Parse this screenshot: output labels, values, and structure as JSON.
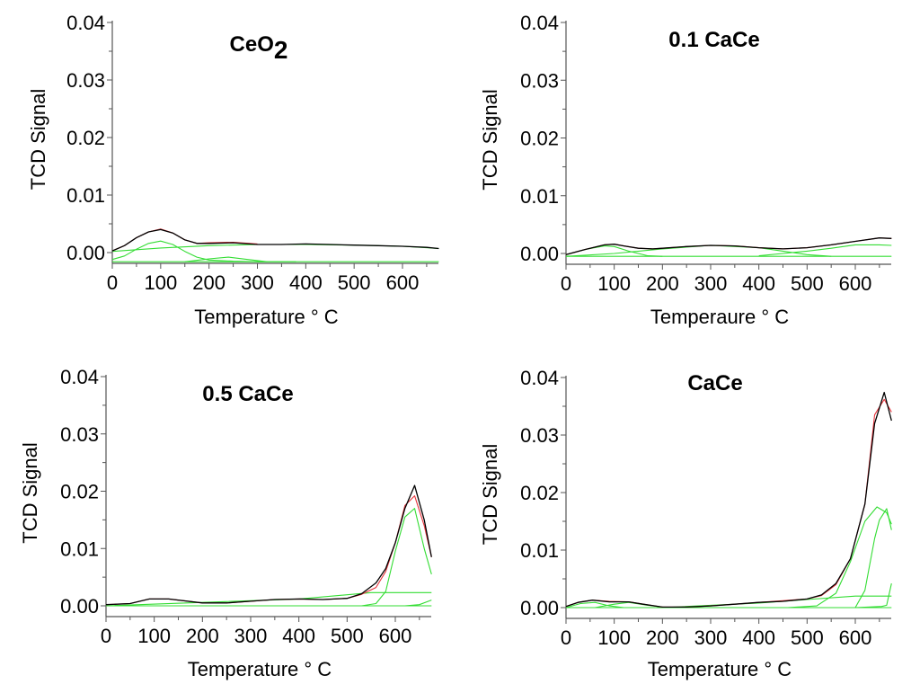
{
  "figure": {
    "layout": "2x2 grid",
    "background": "#ffffff"
  },
  "colors": {
    "experimental": "#000000",
    "fit_sum": "#e8343c",
    "components": "#33dd33",
    "axis": "#555555"
  },
  "chart_data": [
    {
      "id": "ceo2",
      "type": "line",
      "title": "CeO",
      "title_subscript": "2",
      "xlabel": "Temperature ° C",
      "ylabel": "TCD Signal",
      "xlim": [
        0,
        675
      ],
      "ylim": [
        -0.0018,
        0.04
      ],
      "xticks": [
        0,
        100,
        200,
        300,
        400,
        500,
        600
      ],
      "xtick_labels": [
        "0",
        "100",
        "200",
        "300",
        "400",
        "500",
        "600"
      ],
      "yticks": [
        0.0,
        0.01,
        0.02,
        0.03,
        0.04
      ],
      "ytick_labels": [
        "0.00",
        "0.01",
        "0.02",
        "0.03",
        "0.04"
      ],
      "series": [
        {
          "name": "experimental",
          "color": "#000000",
          "x": [
            0,
            25,
            50,
            75,
            100,
            125,
            150,
            175,
            200,
            250,
            300,
            350,
            400,
            450,
            500,
            550,
            600,
            650,
            675
          ],
          "y": [
            0.0003,
            0.0012,
            0.0026,
            0.0036,
            0.004,
            0.0034,
            0.0022,
            0.0016,
            0.0016,
            0.0017,
            0.0014,
            0.0014,
            0.0015,
            0.0014,
            0.0013,
            0.0012,
            0.0011,
            0.0009,
            0.0007
          ]
        },
        {
          "name": "fit",
          "color": "#e8343c",
          "x": [
            0,
            25,
            50,
            75,
            100,
            125,
            150,
            175,
            200,
            250,
            300
          ],
          "y": [
            0.0003,
            0.0012,
            0.0026,
            0.0036,
            0.0041,
            0.0034,
            0.0022,
            0.0016,
            0.0017,
            0.0018,
            0.0015
          ]
        },
        {
          "name": "component-baseline",
          "color": "#33dd33",
          "x": [
            0,
            100,
            200,
            300,
            400,
            500,
            600,
            675
          ],
          "y": [
            0.0002,
            0.0008,
            0.0012,
            0.0014,
            0.0014,
            0.0013,
            0.0011,
            0.0007
          ]
        },
        {
          "name": "component-peak-100",
          "color": "#33dd33",
          "x": [
            0,
            25,
            50,
            75,
            100,
            125,
            150,
            175,
            200,
            250,
            300,
            380
          ],
          "y": [
            -0.0012,
            -0.0006,
            0.0006,
            0.0016,
            0.002,
            0.0014,
            0.0002,
            -0.0008,
            -0.0013,
            -0.0015,
            -0.0016,
            -0.0016
          ]
        },
        {
          "name": "component-peak-240",
          "color": "#33dd33",
          "x": [
            150,
            200,
            240,
            280,
            320
          ],
          "y": [
            -0.0016,
            -0.0011,
            -0.0008,
            -0.0012,
            -0.0016
          ]
        },
        {
          "name": "component-flat",
          "color": "#33dd33",
          "x": [
            0,
            675
          ],
          "y": [
            -0.0016,
            -0.0016
          ]
        }
      ]
    },
    {
      "id": "01cace",
      "type": "line",
      "title": "0.1 CaCe",
      "title_subscript": "",
      "xlabel": "Temperaure ° C",
      "ylabel": "TCD Signal",
      "xlim": [
        0,
        675
      ],
      "ylim": [
        -0.0018,
        0.04
      ],
      "xticks": [
        0,
        100,
        200,
        300,
        400,
        500,
        600
      ],
      "xtick_labels": [
        "0",
        "100",
        "200",
        "300",
        "400",
        "500",
        "600"
      ],
      "yticks": [
        0.0,
        0.01,
        0.02,
        0.03,
        0.04
      ],
      "ytick_labels": [
        "0.00",
        "0.01",
        "0.02",
        "0.03",
        "0.04"
      ],
      "series": [
        {
          "name": "experimental",
          "color": "#000000",
          "x": [
            0,
            40,
            80,
            100,
            120,
            150,
            180,
            200,
            250,
            300,
            350,
            400,
            450,
            500,
            550,
            600,
            650,
            675
          ],
          "y": [
            -0.0002,
            0.0007,
            0.0015,
            0.0016,
            0.0013,
            0.0009,
            0.0008,
            0.0009,
            0.0012,
            0.0014,
            0.0013,
            0.001,
            0.0008,
            0.001,
            0.0015,
            0.0021,
            0.0027,
            0.0026
          ]
        },
        {
          "name": "fit",
          "color": "#e8343c",
          "x": [
            0,
            40,
            80,
            100,
            120,
            150,
            180,
            200,
            250,
            300,
            350,
            400,
            450,
            500,
            550,
            600,
            650,
            675
          ],
          "y": [
            -0.0002,
            0.0007,
            0.0015,
            0.0016,
            0.0013,
            0.0009,
            0.0008,
            0.0009,
            0.0012,
            0.0014,
            0.0013,
            0.001,
            0.0008,
            0.001,
            0.0015,
            0.0021,
            0.0027,
            0.0026
          ]
        },
        {
          "name": "component-peak-90",
          "color": "#33dd33",
          "x": [
            0,
            40,
            80,
            100,
            130,
            170,
            200
          ],
          "y": [
            -0.0002,
            0.0007,
            0.0013,
            0.0012,
            0.0004,
            -0.0004,
            -0.0005
          ]
        },
        {
          "name": "component-broad-300",
          "color": "#33dd33",
          "x": [
            0,
            100,
            200,
            300,
            400,
            450,
            500,
            550
          ],
          "y": [
            -0.0005,
            0.0,
            0.0008,
            0.0014,
            0.001,
            0.0004,
            -0.0002,
            -0.0005
          ]
        },
        {
          "name": "component-rise-600",
          "color": "#33dd33",
          "x": [
            400,
            450,
            500,
            550,
            600,
            650,
            675
          ],
          "y": [
            -0.0004,
            0.0,
            0.0004,
            0.0009,
            0.0015,
            0.0015,
            0.0014
          ]
        },
        {
          "name": "component-flat",
          "color": "#33dd33",
          "x": [
            0,
            675
          ],
          "y": [
            -0.0005,
            -0.0005
          ]
        }
      ]
    },
    {
      "id": "05cace",
      "type": "line",
      "title": "0.5 CaCe",
      "title_subscript": "",
      "xlabel": "Temperature ° C",
      "ylabel": "TCD Signal",
      "xlim": [
        0,
        675
      ],
      "ylim": [
        -0.0018,
        0.04
      ],
      "xticks": [
        0,
        100,
        200,
        300,
        400,
        500,
        600
      ],
      "xtick_labels": [
        "0",
        "100",
        "200",
        "300",
        "400",
        "500",
        "600"
      ],
      "yticks": [
        0.0,
        0.01,
        0.02,
        0.03,
        0.04
      ],
      "ytick_labels": [
        "0.00",
        "0.01",
        "0.02",
        "0.03",
        "0.04"
      ],
      "series": [
        {
          "name": "experimental",
          "color": "#000000",
          "x": [
            0,
            50,
            90,
            130,
            200,
            250,
            300,
            350,
            400,
            450,
            500,
            530,
            560,
            580,
            600,
            620,
            640,
            660,
            675
          ],
          "y": [
            0.0002,
            0.0004,
            0.0012,
            0.0012,
            0.0005,
            0.0005,
            0.0008,
            0.0011,
            0.0012,
            0.0011,
            0.0013,
            0.0021,
            0.004,
            0.0065,
            0.011,
            0.017,
            0.021,
            0.015,
            0.0085
          ]
        },
        {
          "name": "fit",
          "color": "#e8343c",
          "x": [
            0,
            50,
            90,
            130,
            200,
            250,
            300,
            350,
            400,
            450,
            500,
            530,
            560,
            580,
            600,
            620,
            640,
            660,
            675
          ],
          "y": [
            0.0002,
            0.0004,
            0.0012,
            0.0012,
            0.0005,
            0.0005,
            0.0008,
            0.0011,
            0.0012,
            0.0011,
            0.0013,
            0.002,
            0.0032,
            0.006,
            0.011,
            0.0175,
            0.0192,
            0.014,
            0.0085
          ]
        },
        {
          "name": "component-baseline",
          "color": "#33dd33",
          "x": [
            0,
            200,
            400,
            550,
            675
          ],
          "y": [
            0.0,
            0.0006,
            0.0012,
            0.0023,
            0.0023
          ]
        },
        {
          "name": "component-peak-640",
          "color": "#33dd33",
          "x": [
            530,
            560,
            580,
            600,
            620,
            640,
            660,
            675
          ],
          "y": [
            0.0,
            0.0004,
            0.0025,
            0.0095,
            0.0155,
            0.017,
            0.01,
            0.0055
          ]
        },
        {
          "name": "component-rise-675",
          "color": "#33dd33",
          "x": [
            620,
            650,
            675
          ],
          "y": [
            0.0,
            0.0002,
            0.001
          ]
        },
        {
          "name": "component-flat",
          "color": "#33dd33",
          "x": [
            0,
            675
          ],
          "y": [
            0.0,
            0.0
          ]
        }
      ]
    },
    {
      "id": "cace",
      "type": "line",
      "title": "CaCe",
      "title_subscript": "",
      "xlabel": "Temperature ° C",
      "ylabel": "TCD Signal",
      "xlim": [
        0,
        675
      ],
      "ylim": [
        -0.0018,
        0.04
      ],
      "xticks": [
        0,
        100,
        200,
        300,
        400,
        500,
        600
      ],
      "xtick_labels": [
        "0",
        "100",
        "200",
        "300",
        "400",
        "500",
        "600"
      ],
      "yticks": [
        0.0,
        0.01,
        0.02,
        0.03,
        0.04
      ],
      "ytick_labels": [
        "0.00",
        "0.01",
        "0.02",
        "0.03",
        "0.04"
      ],
      "series": [
        {
          "name": "experimental",
          "color": "#000000",
          "x": [
            0,
            25,
            55,
            90,
            130,
            160,
            200,
            250,
            300,
            350,
            400,
            450,
            500,
            530,
            560,
            590,
            620,
            640,
            660,
            675
          ],
          "y": [
            0.0002,
            0.0009,
            0.0013,
            0.001,
            0.001,
            0.0006,
            0.0001,
            0.0001,
            0.0003,
            0.0006,
            0.0009,
            0.0011,
            0.0015,
            0.0022,
            0.0042,
            0.0085,
            0.018,
            0.032,
            0.0374,
            0.0325
          ]
        },
        {
          "name": "fit",
          "color": "#e8343c",
          "x": [
            0,
            25,
            55,
            90,
            130,
            160,
            200,
            250,
            300,
            350,
            400,
            450,
            500,
            530,
            560,
            590,
            620,
            640,
            660,
            675
          ],
          "y": [
            0.0002,
            0.0009,
            0.0013,
            0.0011,
            0.001,
            0.0006,
            0.0001,
            0.0001,
            0.0003,
            0.0006,
            0.0009,
            0.0012,
            0.0015,
            0.0021,
            0.004,
            0.0085,
            0.018,
            0.0335,
            0.0362,
            0.034
          ]
        },
        {
          "name": "component-peak-60",
          "color": "#33dd33",
          "x": [
            0,
            30,
            60,
            90,
            120
          ],
          "y": [
            0.0,
            0.0007,
            0.0009,
            0.0003,
            0.0
          ]
        },
        {
          "name": "component-peak-130",
          "color": "#33dd33",
          "x": [
            60,
            100,
            130,
            170,
            210
          ],
          "y": [
            0.0,
            0.0006,
            0.0009,
            0.0004,
            0.0
          ]
        },
        {
          "name": "component-baseline",
          "color": "#33dd33",
          "x": [
            200,
            300,
            400,
            500,
            600,
            675
          ],
          "y": [
            0.0,
            0.0004,
            0.0008,
            0.0014,
            0.002,
            0.002
          ]
        },
        {
          "name": "component-peak-645",
          "color": "#33dd33",
          "x": [
            460,
            520,
            560,
            590,
            620,
            645,
            665,
            675
          ],
          "y": [
            0.0,
            0.0003,
            0.0025,
            0.008,
            0.015,
            0.0175,
            0.0165,
            0.0145
          ]
        },
        {
          "name": "component-peak-665",
          "color": "#33dd33",
          "x": [
            600,
            620,
            640,
            650,
            665,
            675
          ],
          "y": [
            0.0,
            0.003,
            0.012,
            0.0152,
            0.0172,
            0.0135
          ]
        },
        {
          "name": "component-rise-675",
          "color": "#33dd33",
          "x": [
            600,
            655,
            665,
            675
          ],
          "y": [
            0.0,
            0.0002,
            0.0004,
            0.0042
          ]
        },
        {
          "name": "component-flat",
          "color": "#33dd33",
          "x": [
            0,
            675
          ],
          "y": [
            0.0,
            0.0
          ]
        }
      ]
    }
  ]
}
